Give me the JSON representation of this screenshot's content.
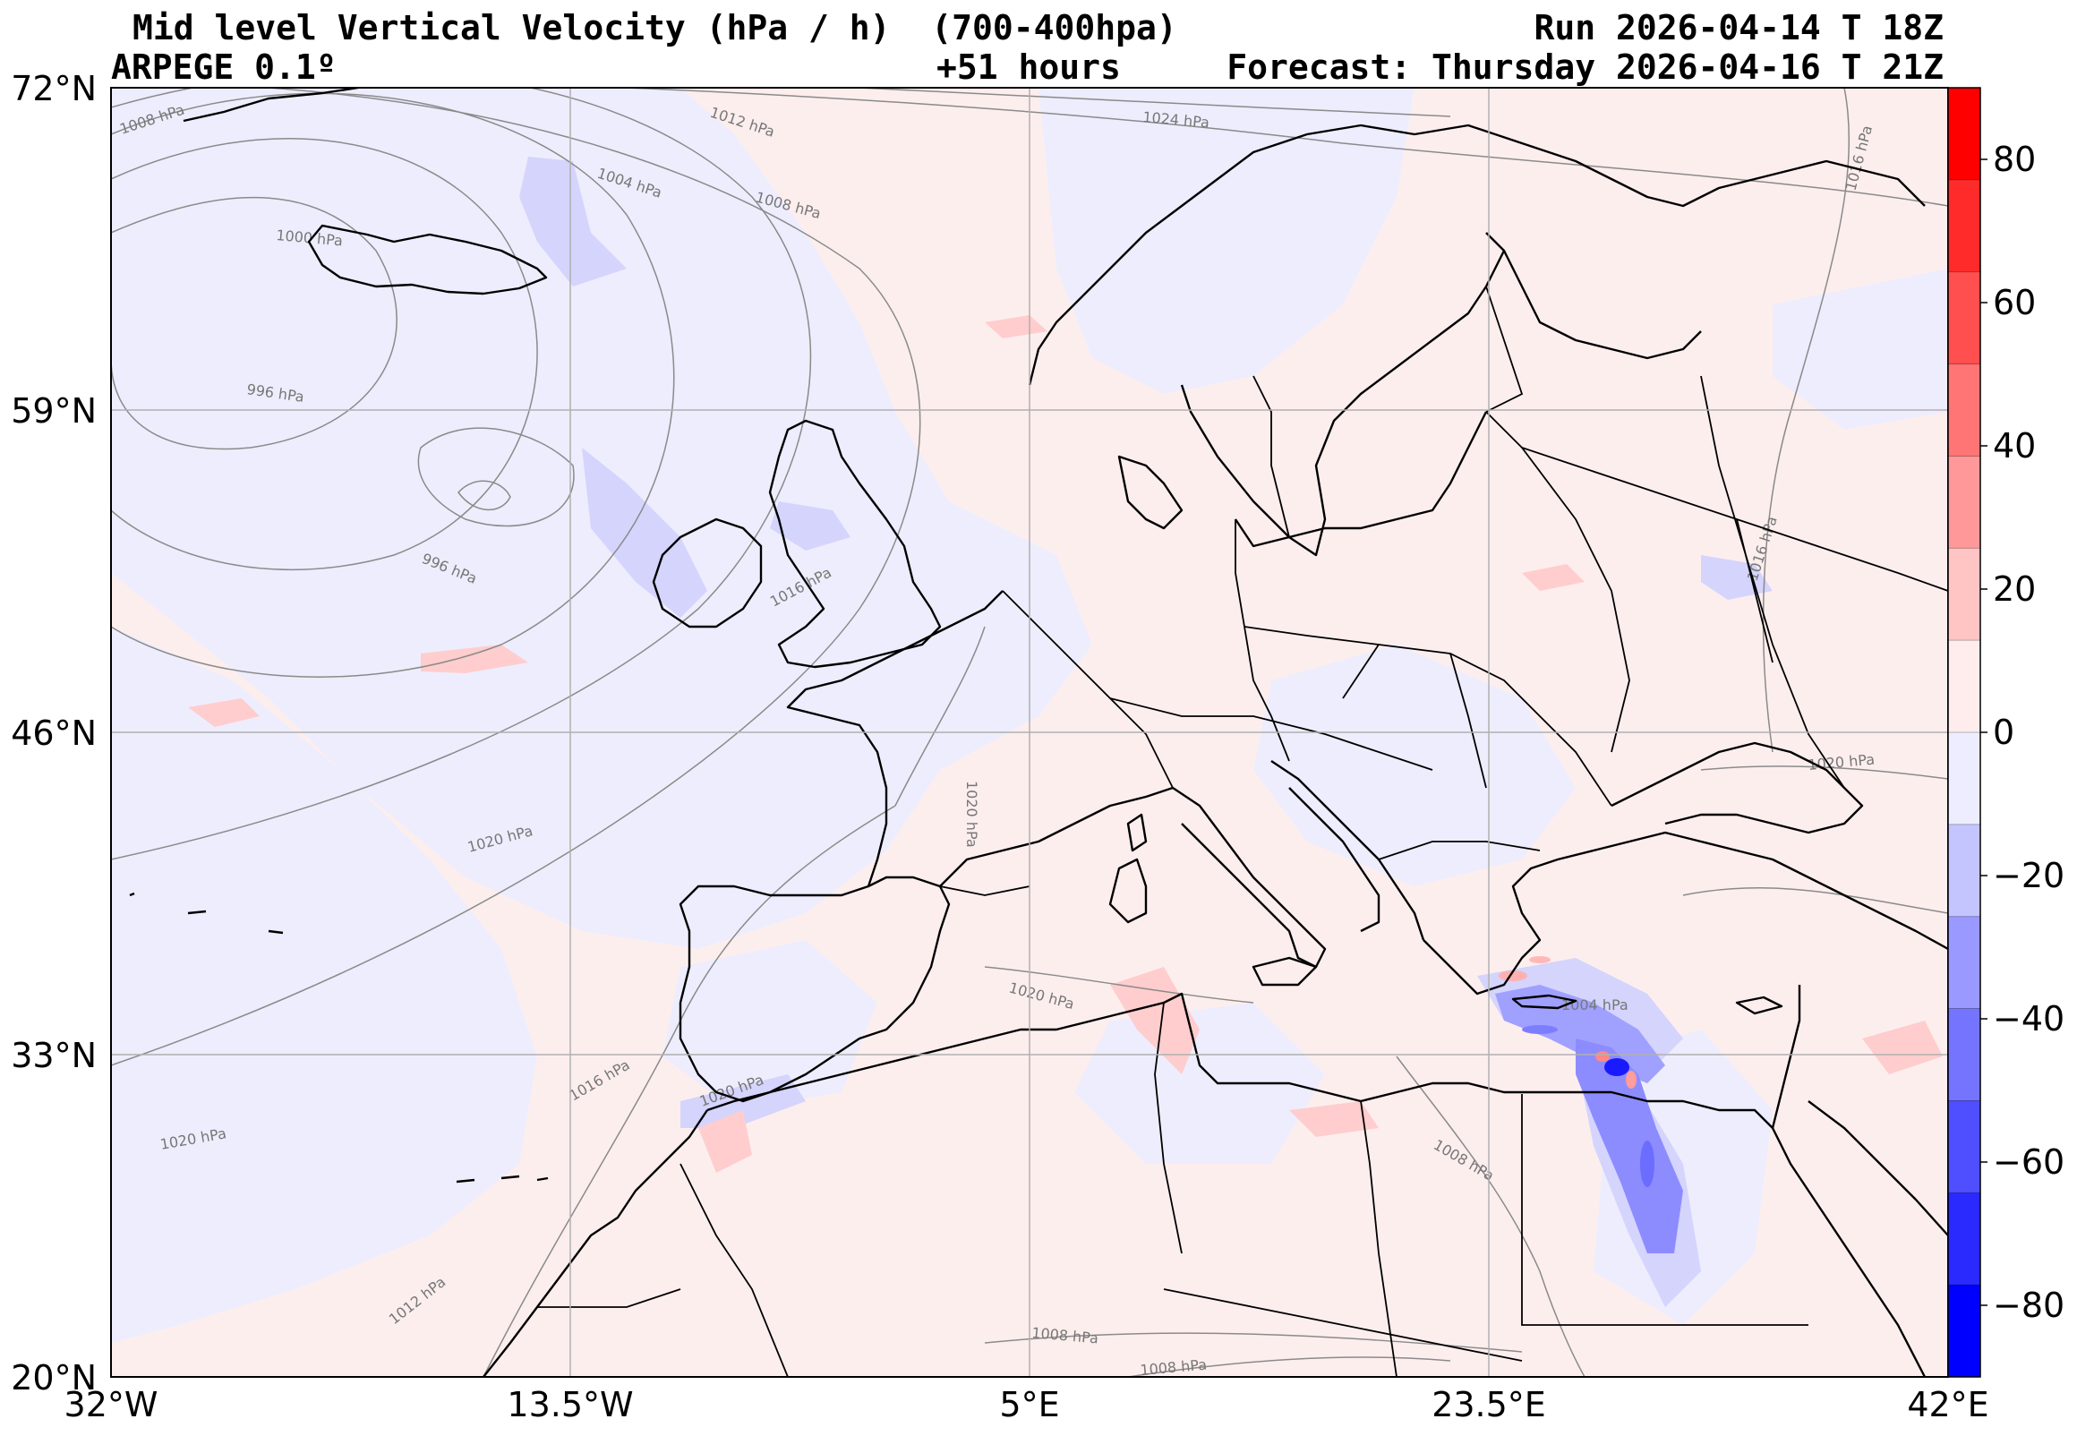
{
  "header": {
    "title": "Mid level Vertical Velocity (hPa / h)  (700-400hpa)",
    "model": "ARPEGE 0.1º",
    "lead": "+51 hours",
    "run": "Run 2026-04-14 T 18Z",
    "forecast": "Forecast: Thursday 2026-04-16 T 21Z"
  },
  "map": {
    "lon_range": [
      -32,
      42
    ],
    "lat_range": [
      20,
      72
    ],
    "lon_ticks": [
      "32°W",
      "13.5°W",
      "5°E",
      "23.5°E",
      "42°E"
    ],
    "lat_ticks": [
      "72°N",
      "59°N",
      "46°N",
      "33°N",
      "20°N"
    ],
    "gridlines": true,
    "colors": {
      "positive_faint": "#fdeeee",
      "negative_faint": "#eeeefd",
      "coastline": "#000000",
      "isobar": "#8a8a8a"
    }
  },
  "colorbar": {
    "range": [
      -90,
      90
    ],
    "tick_labels": [
      "80",
      "60",
      "40",
      "20",
      "0",
      "−20",
      "−40",
      "−60",
      "−80"
    ],
    "colors": [
      "#ff0000",
      "#ff2a2a",
      "#ff4f4f",
      "#ff7474",
      "#ff9999",
      "#ffc4c4",
      "#ffeded",
      "#ededff",
      "#c4c4ff",
      "#9999ff",
      "#7474ff",
      "#4f4fff",
      "#2a2aff",
      "#0000ff"
    ]
  },
  "isobars": [
    {
      "text": "1008 hPa"
    },
    {
      "text": "1012 hPa"
    },
    {
      "text": "1004 hPa"
    },
    {
      "text": "1008 hPa"
    },
    {
      "text": "1024 hPa"
    },
    {
      "text": "1016 hPa"
    },
    {
      "text": "1000 hPa"
    },
    {
      "text": "996 hPa"
    },
    {
      "text": "996 hPa"
    },
    {
      "text": "1016 hPa"
    },
    {
      "text": "1016 hPa"
    },
    {
      "text": "1020 hPa"
    },
    {
      "text": "1020 hPa"
    },
    {
      "text": "1020 hPa"
    },
    {
      "text": "1020 hPa"
    },
    {
      "text": "1004 hPa"
    },
    {
      "text": "1016 hPa"
    },
    {
      "text": "1020 hPa"
    },
    {
      "text": "1020 hPa"
    },
    {
      "text": "1008 hPa"
    },
    {
      "text": "1012 hPa"
    },
    {
      "text": "1008 hPa"
    },
    {
      "text": "1008 hPa"
    }
  ]
}
